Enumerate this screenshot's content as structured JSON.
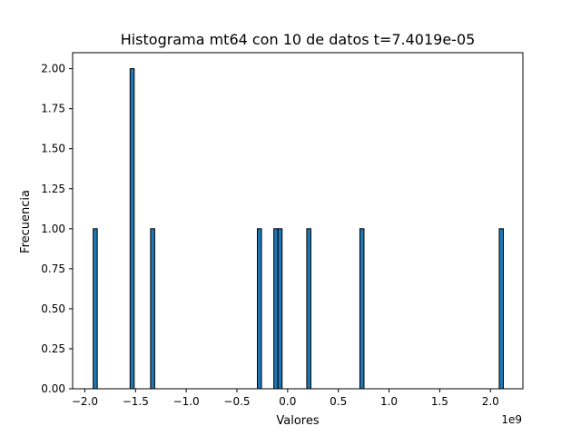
{
  "chart_data": {
    "type": "bar",
    "title": "Histograma mt64 con 10 de datos t=7.4019e-05",
    "xlabel": "Valores",
    "ylabel": "Frecuencia",
    "x_offset_label": "1e9",
    "xlim": [
      -2.12,
      2.32
    ],
    "ylim": [
      0,
      2.1
    ],
    "x_ticks": [
      -2.0,
      -1.5,
      -1.0,
      -0.5,
      0.0,
      0.5,
      1.0,
      1.5,
      2.0
    ],
    "x_tick_labels": [
      "−2.0",
      "−1.5",
      "−1.0",
      "−0.5",
      "0.0",
      "0.5",
      "1.0",
      "1.5",
      "2.0"
    ],
    "y_ticks": [
      0,
      0.25,
      0.5,
      0.75,
      1.0,
      1.25,
      1.5,
      1.75,
      2.0
    ],
    "y_tick_labels": [
      "0.00",
      "0.25",
      "0.50",
      "0.75",
      "1.00",
      "1.25",
      "1.50",
      "1.75",
      "2.00"
    ],
    "bin_width": 0.0405,
    "bars": [
      {
        "x": -1.897,
        "count": 1
      },
      {
        "x": -1.533,
        "count": 2
      },
      {
        "x": -1.331,
        "count": 1
      },
      {
        "x": -0.278,
        "count": 1
      },
      {
        "x": -0.116,
        "count": 1
      },
      {
        "x": -0.075,
        "count": 1
      },
      {
        "x": 0.209,
        "count": 1
      },
      {
        "x": 0.733,
        "count": 1
      },
      {
        "x": 2.107,
        "count": 1
      }
    ],
    "bar_color": "#1f77b4",
    "edge_color": "#000000",
    "grid": false
  }
}
